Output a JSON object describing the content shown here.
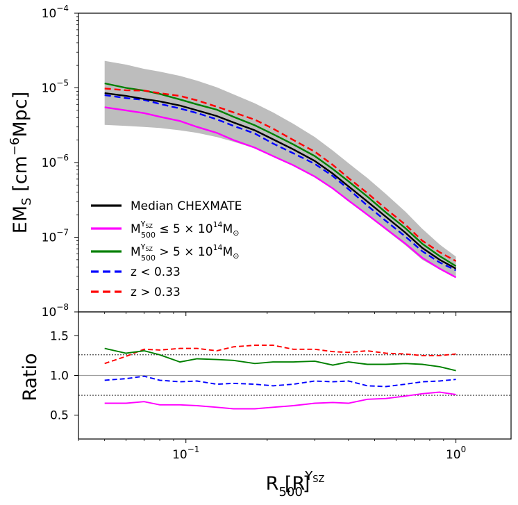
{
  "chart_data": [
    {
      "type": "line",
      "title": "",
      "yscale": "log",
      "xscale": "log",
      "ylim": [
        1e-08,
        0.0001
      ],
      "xlim": [
        0.04,
        1.6
      ],
      "ylabel_main": "EM",
      "ylabel_sub": "S",
      "ylabel_unit_open": " [cm",
      "ylabel_unit_sup": "−6",
      "ylabel_unit_close": "Mpc]",
      "ytick_labels": [
        {
          "value": 1e-08,
          "base": "10",
          "exp": "−8"
        },
        {
          "value": 1e-07,
          "base": "10",
          "exp": "−7"
        },
        {
          "value": 1e-06,
          "base": "10",
          "exp": "−6"
        },
        {
          "value": 1e-05,
          "base": "10",
          "exp": "−5"
        },
        {
          "value": 0.0001,
          "base": "10",
          "exp": "−4"
        }
      ],
      "x": [
        0.05,
        0.06,
        0.07,
        0.08,
        0.095,
        0.11,
        0.13,
        0.15,
        0.18,
        0.21,
        0.25,
        0.3,
        0.35,
        0.4,
        0.47,
        0.55,
        0.65,
        0.75,
        0.87,
        1.0
      ],
      "band": {
        "name": "scatter",
        "color": "#bdbdbd",
        "lower": [
          3.2e-06,
          3.1e-06,
          3e-06,
          2.9e-06,
          2.7e-06,
          2.5e-06,
          2.2e-06,
          1.9e-06,
          1.55e-06,
          1.2e-06,
          9e-07,
          6.3e-07,
          4.4e-07,
          3e-07,
          1.95e-07,
          1.25e-07,
          7.8e-08,
          5e-08,
          3.7e-08,
          3e-08
        ],
        "upper": [
          2.3e-05,
          2.05e-05,
          1.8e-05,
          1.65e-05,
          1.45e-05,
          1.25e-05,
          1.02e-05,
          8.2e-06,
          6.2e-06,
          4.7e-06,
          3.3e-06,
          2.2e-06,
          1.45e-06,
          9.8e-07,
          6.2e-07,
          3.8e-07,
          2.2e-07,
          1.3e-07,
          8e-08,
          5.5e-08
        ]
      },
      "series": [
        {
          "name": "Median CHEXMATE",
          "color": "#000000",
          "dash": "solid",
          "values": [
            8.5e-06,
            7.8e-06,
            7.1e-06,
            6.6e-06,
            5.8e-06,
            5e-06,
            4.2e-06,
            3.45e-06,
            2.7e-06,
            2.05e-06,
            1.5e-06,
            1.05e-06,
            7.1e-07,
            4.8e-07,
            3e-07,
            1.88e-07,
            1.15e-07,
            7.2e-08,
            5e-08,
            3.8e-08
          ]
        },
        {
          "name": "M500_low",
          "color": "#ff00ff",
          "dash": "solid",
          "values": [
            5.5e-06,
            5e-06,
            4.6e-06,
            4.1e-06,
            3.6e-06,
            3e-06,
            2.5e-06,
            2e-06,
            1.58e-06,
            1.22e-06,
            9.2e-07,
            6.5e-07,
            4.5e-07,
            3.1e-07,
            2e-07,
            1.3e-07,
            8.2e-08,
            5.3e-08,
            3.8e-08,
            2.9e-08
          ]
        },
        {
          "name": "M500_high",
          "color": "#008000",
          "dash": "solid",
          "values": [
            1.15e-05,
            1e-05,
            9.2e-06,
            8.3e-06,
            7e-06,
            6e-06,
            5.1e-06,
            4.1e-06,
            3.15e-06,
            2.4e-06,
            1.75e-06,
            1.22e-06,
            8.2e-07,
            5.6e-07,
            3.5e-07,
            2.15e-07,
            1.32e-07,
            8.2e-08,
            5.6e-08,
            4.1e-08
          ]
        },
        {
          "name": "z_low",
          "color": "#0000ff",
          "dash": "dashed",
          "values": [
            8e-06,
            7.3e-06,
            6.9e-06,
            6.1e-06,
            5.3e-06,
            4.6e-06,
            3.8e-06,
            3.1e-06,
            2.45e-06,
            1.8e-06,
            1.33e-06,
            9.6e-07,
            6.6e-07,
            4.4e-07,
            2.65e-07,
            1.65e-07,
            1.02e-07,
            6.5e-08,
            4.6e-08,
            3.6e-08
          ]
        },
        {
          "name": "z_high",
          "color": "#ff0000",
          "dash": "dashed",
          "values": [
            9.8e-06,
            9.3e-06,
            9.2e-06,
            8.5e-06,
            7.8e-06,
            6.8e-06,
            5.6e-06,
            4.7e-06,
            3.75e-06,
            2.85e-06,
            2e-06,
            1.4e-06,
            9.3e-07,
            6.2e-07,
            3.9e-07,
            2.4e-07,
            1.47e-07,
            9e-08,
            6.3e-08,
            4.8e-08
          ]
        }
      ],
      "legend": {
        "placement": "lower-left",
        "entries": [
          {
            "key": "median",
            "label": "Median CHEXMATE",
            "color": "#000000",
            "dash": "solid"
          },
          {
            "key": "m_low",
            "pre": "M",
            "sup": "Y",
            "supsub": "SZ",
            "sub": "500",
            "rel": " ≤ 5 × 10",
            "exp": "14",
            "unit": "M",
            "unitsub": "⊙",
            "color": "#ff00ff",
            "dash": "solid"
          },
          {
            "key": "m_high",
            "pre": "M",
            "sup": "Y",
            "supsub": "SZ",
            "sub": "500",
            "rel": " > 5 × 10",
            "exp": "14",
            "unit": "M",
            "unitsub": "⊙",
            "color": "#008000",
            "dash": "solid"
          },
          {
            "key": "z_low",
            "label": "z < 0.33",
            "color": "#0000ff",
            "dash": "dashed"
          },
          {
            "key": "z_high",
            "label": "z > 0.33",
            "color": "#ff0000",
            "dash": "dashed"
          }
        ]
      }
    },
    {
      "type": "line",
      "title": "",
      "xscale": "log",
      "ylim": [
        0.2,
        1.8
      ],
      "xlim": [
        0.04,
        1.6
      ],
      "ylabel": "Ratio",
      "xlabel_pre": "R [R",
      "xlabel_sup": "Y",
      "xlabel_supsub": "SZ",
      "xlabel_sub": "500",
      "xlabel_post": "]",
      "ytick_labels": [
        {
          "value": 0.5,
          "label": "0.5"
        },
        {
          "value": 1.0,
          "label": "1.0"
        },
        {
          "value": 1.5,
          "label": "1.5"
        }
      ],
      "xtick_labels": [
        {
          "value": 0.1,
          "base": "10",
          "exp": "−1"
        },
        {
          "value": 1.0,
          "base": "10",
          "exp": "0"
        }
      ],
      "reference_lines": [
        {
          "value": 1.0,
          "color": "#9e9e9e",
          "style": "solid"
        },
        {
          "value": 1.26,
          "color": "#000000",
          "style": "dotted"
        },
        {
          "value": 0.75,
          "color": "#000000",
          "style": "dotted"
        }
      ],
      "x": [
        0.05,
        0.06,
        0.07,
        0.08,
        0.095,
        0.11,
        0.13,
        0.15,
        0.18,
        0.21,
        0.25,
        0.3,
        0.35,
        0.4,
        0.47,
        0.55,
        0.65,
        0.75,
        0.87,
        1.0
      ],
      "series": [
        {
          "name": "z_high",
          "color": "#ff0000",
          "dash": "dashed",
          "values": [
            1.15,
            1.24,
            1.33,
            1.32,
            1.34,
            1.34,
            1.31,
            1.36,
            1.38,
            1.38,
            1.33,
            1.33,
            1.3,
            1.29,
            1.31,
            1.28,
            1.27,
            1.25,
            1.25,
            1.27
          ]
        },
        {
          "name": "M500_high",
          "color": "#008000",
          "dash": "solid",
          "values": [
            1.34,
            1.28,
            1.31,
            1.26,
            1.17,
            1.21,
            1.2,
            1.19,
            1.15,
            1.17,
            1.17,
            1.18,
            1.13,
            1.17,
            1.14,
            1.14,
            1.15,
            1.14,
            1.11,
            1.06
          ]
        },
        {
          "name": "z_low",
          "color": "#0000ff",
          "dash": "dashed",
          "values": [
            0.94,
            0.96,
            0.99,
            0.94,
            0.92,
            0.93,
            0.89,
            0.9,
            0.89,
            0.87,
            0.89,
            0.93,
            0.92,
            0.93,
            0.87,
            0.86,
            0.89,
            0.92,
            0.93,
            0.95
          ]
        },
        {
          "name": "M500_low",
          "color": "#ff00ff",
          "dash": "solid",
          "values": [
            0.65,
            0.65,
            0.67,
            0.63,
            0.63,
            0.62,
            0.6,
            0.58,
            0.58,
            0.6,
            0.62,
            0.65,
            0.66,
            0.65,
            0.7,
            0.71,
            0.74,
            0.77,
            0.79,
            0.76
          ]
        }
      ]
    }
  ]
}
